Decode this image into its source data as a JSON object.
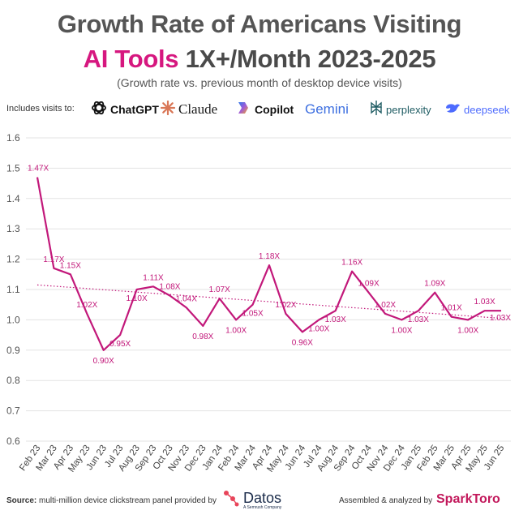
{
  "title_line1": "Growth Rate of Americans Visiting",
  "title_line2_accent": "AI Tools",
  "title_line2_rest": "1X+/Month 2023-2025",
  "subtitle": "(Growth rate vs. previous month of desktop device visits)",
  "includes_label": "Includes visits to:",
  "brands": [
    {
      "name": "ChatGPT",
      "icon": "chatgpt-logo-icon"
    },
    {
      "name": "Claude",
      "icon": "claude-logo-icon"
    },
    {
      "name": "Copilot",
      "icon": "copilot-logo-icon"
    },
    {
      "name": "Gemini",
      "icon": "gemini-logo-icon"
    },
    {
      "name": "perplexity",
      "icon": "perplexity-logo-icon"
    },
    {
      "name": "deepseek",
      "icon": "deepseek-logo-icon"
    }
  ],
  "footer": {
    "source_label": "Source:",
    "source_text": "multi-million device clickstream panel provided by",
    "datos_name": "Datos",
    "datos_sub": "A Semrush Company",
    "assembled_text": "Assembled & analyzed by",
    "sparktoro_name": "SparkToro"
  },
  "colors": {
    "line": "#c2187a",
    "label": "#c2187a",
    "grid": "#e3e3e3",
    "accent_title": "#d6177f"
  },
  "chart_data": {
    "type": "line",
    "x": [
      "Feb 23",
      "Mar 23",
      "Apr 23",
      "May 23",
      "Jun 23",
      "Jul 23",
      "Aug 23",
      "Sep 23",
      "Oct 23",
      "Nov 23",
      "Dec 23",
      "Jan 24",
      "Feb 24",
      "Mar 24",
      "Apr 24",
      "May 24",
      "Jun 24",
      "Jul 24",
      "Aug 24",
      "Sep 24",
      "Oct 24",
      "Nov 24",
      "Dec 24",
      "Jan 25",
      "Feb 25",
      "Mar 25",
      "Apr 25",
      "May 25",
      "Jun 25"
    ],
    "series": [
      {
        "values": [
          1.47,
          1.17,
          1.15,
          1.02,
          0.9,
          0.95,
          1.1,
          1.11,
          1.08,
          1.04,
          0.98,
          1.07,
          1.0,
          1.05,
          1.18,
          1.02,
          0.96,
          1.0,
          1.03,
          1.16,
          1.09,
          1.02,
          1.0,
          1.03,
          1.09,
          1.01,
          1.0,
          1.03,
          1.03
        ],
        "data_labels": [
          "1.47X",
          "1.17X",
          "1.15X",
          "1.02X",
          "0.90X",
          "0.95X",
          "1.10X",
          "1.11X",
          "1.08X",
          "1.04X",
          "0.98X",
          "1.07X",
          "1.00X",
          "1.05X",
          "1.18X",
          "1.02X",
          "0.96X",
          "1.00X",
          "1.03X",
          "1.16X",
          "1.09X",
          "1.02X",
          "1.00X",
          "1.03X",
          "1.09X",
          "1.01X",
          "1.00X",
          "1.03X",
          "1.03X"
        ]
      }
    ],
    "trendline": {
      "style": "dotted",
      "start": 1.115,
      "end": 1.005
    },
    "ylim": [
      0.6,
      1.6
    ],
    "yticks": [
      "0.6",
      "0.7",
      "0.8",
      "0.9",
      "1.0",
      "1.1",
      "1.2",
      "1.3",
      "1.4",
      "1.5",
      "1.6"
    ],
    "grid": true,
    "legend": "none",
    "xlabel": "",
    "ylabel": ""
  }
}
